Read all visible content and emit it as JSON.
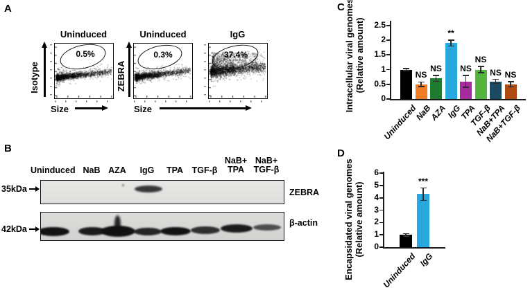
{
  "figure": {
    "panel_a": {
      "label": "A",
      "xlabel": "Size",
      "plots": [
        {
          "title": "Uninduced",
          "ylabel": "Isotype",
          "gate_percent": "0.5%"
        },
        {
          "title": "Uninduced",
          "ylabel": "ZEBRA",
          "gate_percent": "0.3%"
        },
        {
          "title": "IgG",
          "gate_percent": "37.4%"
        }
      ]
    },
    "panel_b": {
      "label": "B",
      "lanes": [
        "Uninduced",
        "NaB",
        "AZA",
        "IgG",
        "TPA",
        "TGF-β",
        "NaB+\nTPA",
        "NaB+\nTGF-β"
      ],
      "marker_35": "35kDa",
      "marker_42": "42kDa",
      "blot_labels": [
        "ZEBRA",
        "β-actin"
      ]
    },
    "panel_c": {
      "label": "C"
    },
    "panel_d": {
      "label": "D"
    }
  },
  "chart_data": [
    {
      "type": "bar",
      "panel": "C",
      "ylabel": "Intracellular viral genomes\n(Relative amount)",
      "categories": [
        "Uninduced",
        "NaB",
        "AZA",
        "IgG",
        "TPA",
        "TGF-β",
        "NaB+TPA",
        "NaB+TGF-β"
      ],
      "values": [
        1.0,
        0.5,
        0.7,
        1.9,
        0.6,
        1.0,
        0.6,
        0.5
      ],
      "errors": [
        0.04,
        0.08,
        0.1,
        0.1,
        0.2,
        0.1,
        0.07,
        0.09
      ],
      "annotations": [
        "",
        "NS",
        "NS",
        "**",
        "NS",
        "NS",
        "NS",
        "NS"
      ],
      "colors": [
        "#000000",
        "#F07C26",
        "#1E7B2F",
        "#29A8DF",
        "#A62B9F",
        "#53B43E",
        "#1A4B63",
        "#AE4B13"
      ],
      "yticks": [
        "0",
        "0.5",
        "1",
        "1.5",
        "2",
        "2.5"
      ],
      "ylim": [
        0,
        2.5
      ],
      "grid": false,
      "legend": null
    },
    {
      "type": "bar",
      "panel": "D",
      "ylabel": "Encapsidated viral genomes\n(Relative amount)",
      "categories": [
        "Uninduced",
        "IgG"
      ],
      "values": [
        1.0,
        4.3
      ],
      "errors": [
        0.1,
        0.5
      ],
      "annotations": [
        "",
        "***"
      ],
      "colors": [
        "#000000",
        "#29A8DF"
      ],
      "yticks": [
        "0",
        "1",
        "2",
        "3",
        "4",
        "5",
        "6"
      ],
      "ylim": [
        0,
        6
      ],
      "grid": false,
      "legend": null
    },
    {
      "type": "scatter",
      "panel": "A",
      "plots": [
        {
          "title": "Uninduced",
          "xlabel": "Size",
          "ylabel": "Isotype",
          "gate_percent": 0.5
        },
        {
          "title": "Uninduced",
          "xlabel": "Size",
          "ylabel": "ZEBRA",
          "gate_percent": 0.3
        },
        {
          "title": "IgG",
          "xlabel": "Size",
          "ylabel": "ZEBRA",
          "gate_percent": 37.4
        }
      ]
    }
  ]
}
